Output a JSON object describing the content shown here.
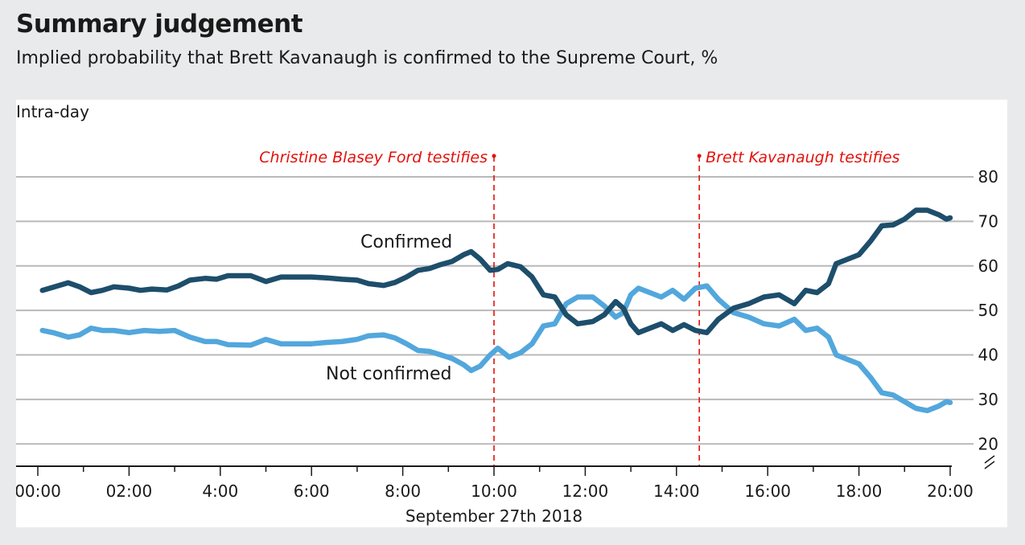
{
  "header": {
    "title": "Summary judgement",
    "subtitle": "Implied probability that Brett Kavanaugh is confirmed to the Supreme Court, %"
  },
  "chart_data": {
    "type": "line",
    "panel_label": "Intra-day",
    "xlabel": "September 27th 2018",
    "x_ticks": [
      "00:00",
      "02:00",
      "4:00",
      "6:00",
      "8:00",
      "10:00",
      "12:00",
      "14:00",
      "16:00",
      "18:00",
      "20:00"
    ],
    "y_ticks": [
      20,
      30,
      40,
      50,
      60,
      70,
      80
    ],
    "ylim": [
      15,
      80
    ],
    "xlim_hours": [
      0,
      20
    ],
    "grid": true,
    "axis_break": true,
    "annotations": [
      {
        "time": "10:00",
        "text": "Christine Blasey Ford testifies",
        "side": "left"
      },
      {
        "time": "14:30",
        "text": "Brett Kavanaugh testifies",
        "side": "right"
      }
    ],
    "series": [
      {
        "name": "Confirmed",
        "color": "#1d4e6b",
        "points": [
          [
            "00:06",
            54.5
          ],
          [
            "00:20",
            55.2
          ],
          [
            "00:40",
            56.2
          ],
          [
            "00:55",
            55.3
          ],
          [
            "01:10",
            54.0
          ],
          [
            "01:25",
            54.5
          ],
          [
            "01:40",
            55.3
          ],
          [
            "02:00",
            55.0
          ],
          [
            "02:15",
            54.5
          ],
          [
            "02:30",
            54.8
          ],
          [
            "02:50",
            54.6
          ],
          [
            "03:05",
            55.5
          ],
          [
            "03:20",
            56.8
          ],
          [
            "03:40",
            57.2
          ],
          [
            "03:55",
            57.0
          ],
          [
            "04:10",
            57.8
          ],
          [
            "04:40",
            57.8
          ],
          [
            "05:00",
            56.5
          ],
          [
            "05:20",
            57.5
          ],
          [
            "06:00",
            57.5
          ],
          [
            "06:20",
            57.3
          ],
          [
            "06:40",
            57.0
          ],
          [
            "07:00",
            56.8
          ],
          [
            "07:15",
            56.0
          ],
          [
            "07:35",
            55.6
          ],
          [
            "07:50",
            56.3
          ],
          [
            "08:05",
            57.5
          ],
          [
            "08:20",
            59.0
          ],
          [
            "08:35",
            59.4
          ],
          [
            "08:50",
            60.3
          ],
          [
            "09:05",
            61.0
          ],
          [
            "09:20",
            62.5
          ],
          [
            "09:30",
            63.2
          ],
          [
            "09:42",
            61.5
          ],
          [
            "09:55",
            59.0
          ],
          [
            "10:05",
            59.2
          ],
          [
            "10:18",
            60.5
          ],
          [
            "10:35",
            59.8
          ],
          [
            "10:50",
            57.5
          ],
          [
            "11:05",
            53.5
          ],
          [
            "11:20",
            53.0
          ],
          [
            "11:35",
            49.0
          ],
          [
            "11:50",
            47.0
          ],
          [
            "12:10",
            47.5
          ],
          [
            "12:25",
            49.0
          ],
          [
            "12:40",
            52.0
          ],
          [
            "12:50",
            50.5
          ],
          [
            "13:00",
            47.0
          ],
          [
            "13:10",
            45.0
          ],
          [
            "13:25",
            46.0
          ],
          [
            "13:40",
            47.0
          ],
          [
            "13:55",
            45.5
          ],
          [
            "14:10",
            46.8
          ],
          [
            "14:25",
            45.5
          ],
          [
            "14:40",
            45.0
          ],
          [
            "14:55",
            48.0
          ],
          [
            "15:15",
            50.5
          ],
          [
            "15:35",
            51.5
          ],
          [
            "15:55",
            53.0
          ],
          [
            "16:15",
            53.5
          ],
          [
            "16:35",
            51.5
          ],
          [
            "16:50",
            54.5
          ],
          [
            "17:05",
            54.0
          ],
          [
            "17:20",
            56.0
          ],
          [
            "17:30",
            60.5
          ],
          [
            "17:45",
            61.5
          ],
          [
            "18:00",
            62.5
          ],
          [
            "18:15",
            65.5
          ],
          [
            "18:30",
            69.0
          ],
          [
            "18:45",
            69.2
          ],
          [
            "19:00",
            70.5
          ],
          [
            "19:15",
            72.5
          ],
          [
            "19:30",
            72.5
          ],
          [
            "19:45",
            71.5
          ],
          [
            "19:55",
            70.5
          ],
          [
            "20:00",
            70.8
          ]
        ]
      },
      {
        "name": "Not confirmed",
        "color": "#52a7dc",
        "points": [
          [
            "00:06",
            45.5
          ],
          [
            "00:20",
            45.0
          ],
          [
            "00:40",
            44.0
          ],
          [
            "00:55",
            44.5
          ],
          [
            "01:10",
            46.0
          ],
          [
            "01:25",
            45.5
          ],
          [
            "01:40",
            45.5
          ],
          [
            "02:00",
            45.0
          ],
          [
            "02:20",
            45.5
          ],
          [
            "02:40",
            45.3
          ],
          [
            "03:00",
            45.5
          ],
          [
            "03:20",
            44.0
          ],
          [
            "03:40",
            43.0
          ],
          [
            "03:55",
            43.0
          ],
          [
            "04:10",
            42.3
          ],
          [
            "04:40",
            42.2
          ],
          [
            "05:00",
            43.5
          ],
          [
            "05:20",
            42.5
          ],
          [
            "06:00",
            42.5
          ],
          [
            "06:20",
            42.8
          ],
          [
            "06:40",
            43.0
          ],
          [
            "07:00",
            43.5
          ],
          [
            "07:15",
            44.3
          ],
          [
            "07:35",
            44.5
          ],
          [
            "07:50",
            43.8
          ],
          [
            "08:05",
            42.5
          ],
          [
            "08:20",
            41.0
          ],
          [
            "08:35",
            40.8
          ],
          [
            "08:50",
            40.0
          ],
          [
            "09:05",
            39.2
          ],
          [
            "09:20",
            37.8
          ],
          [
            "09:30",
            36.5
          ],
          [
            "09:42",
            37.5
          ],
          [
            "09:55",
            40.0
          ],
          [
            "10:05",
            41.5
          ],
          [
            "10:20",
            39.5
          ],
          [
            "10:35",
            40.5
          ],
          [
            "10:50",
            42.5
          ],
          [
            "11:05",
            46.5
          ],
          [
            "11:20",
            47.0
          ],
          [
            "11:35",
            51.5
          ],
          [
            "11:50",
            53.0
          ],
          [
            "12:10",
            53.0
          ],
          [
            "12:25",
            51.0
          ],
          [
            "12:40",
            48.5
          ],
          [
            "12:50",
            49.5
          ],
          [
            "13:00",
            53.5
          ],
          [
            "13:10",
            55.0
          ],
          [
            "13:25",
            54.0
          ],
          [
            "13:40",
            53.0
          ],
          [
            "13:55",
            54.5
          ],
          [
            "14:10",
            52.5
          ],
          [
            "14:25",
            55.0
          ],
          [
            "14:40",
            55.5
          ],
          [
            "14:55",
            52.5
          ],
          [
            "15:15",
            49.5
          ],
          [
            "15:35",
            48.5
          ],
          [
            "15:55",
            47.0
          ],
          [
            "16:15",
            46.5
          ],
          [
            "16:35",
            48.0
          ],
          [
            "16:50",
            45.5
          ],
          [
            "17:05",
            46.0
          ],
          [
            "17:20",
            44.0
          ],
          [
            "17:30",
            40.0
          ],
          [
            "17:45",
            39.0
          ],
          [
            "18:00",
            38.0
          ],
          [
            "18:15",
            35.0
          ],
          [
            "18:30",
            31.5
          ],
          [
            "18:45",
            31.0
          ],
          [
            "19:00",
            29.5
          ],
          [
            "19:15",
            28.0
          ],
          [
            "19:30",
            27.5
          ],
          [
            "19:45",
            28.5
          ],
          [
            "19:55",
            29.5
          ],
          [
            "20:00",
            29.3
          ]
        ]
      }
    ]
  }
}
